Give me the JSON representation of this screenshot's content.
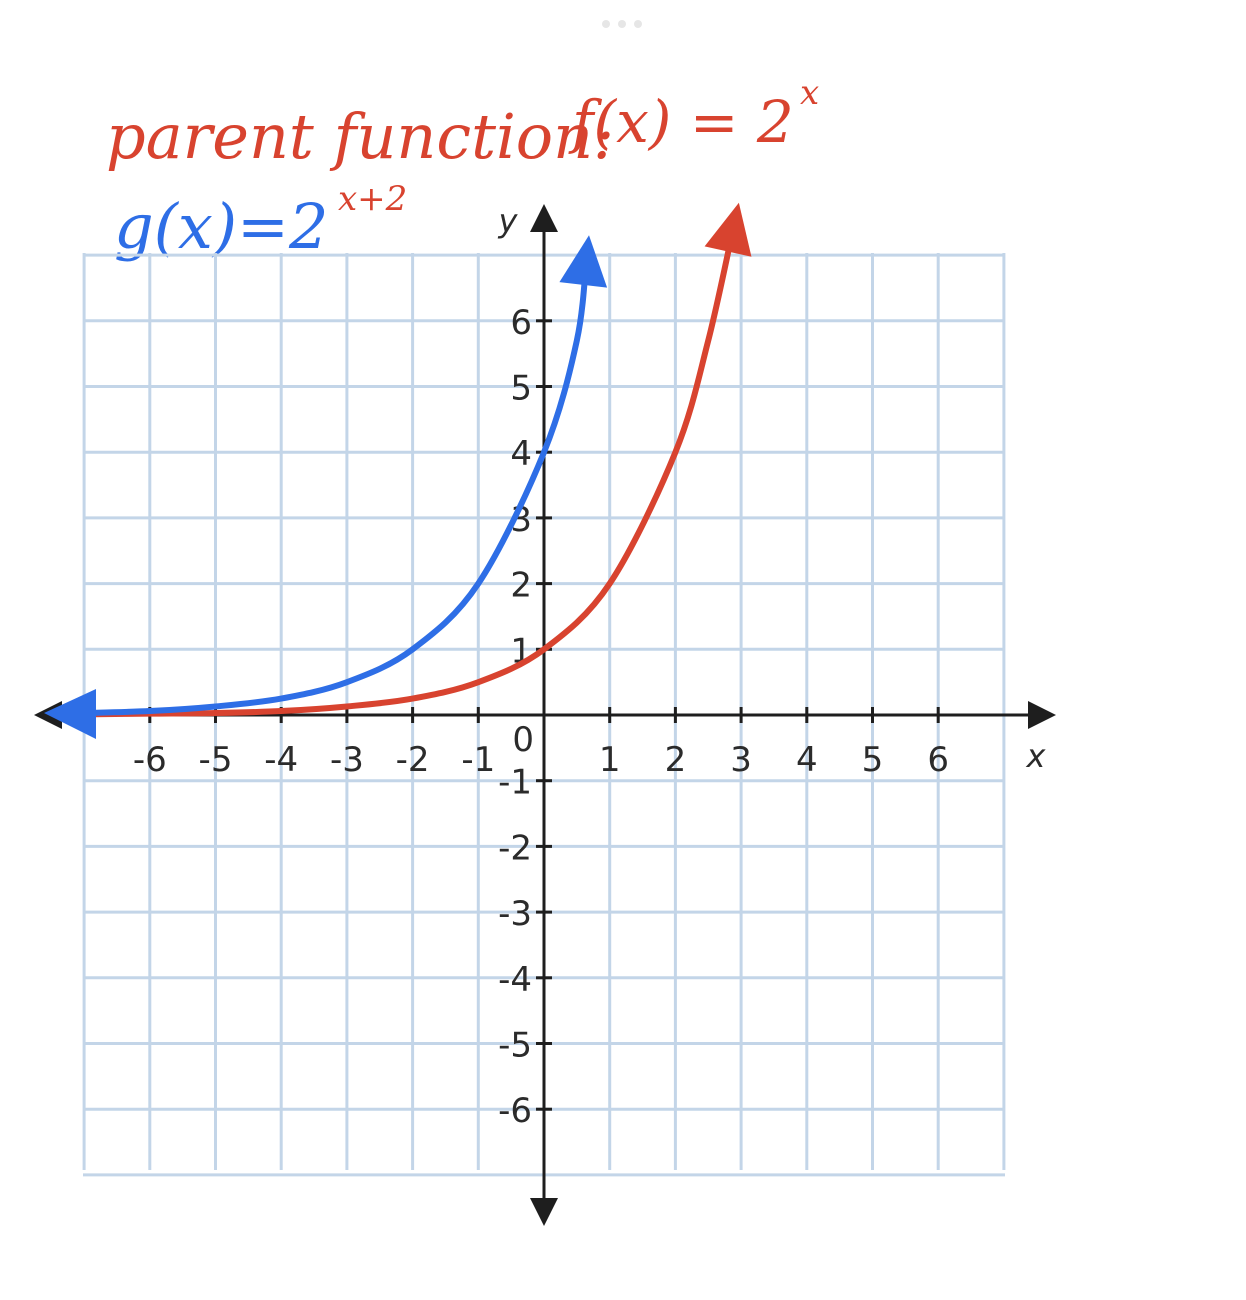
{
  "annotations": {
    "parent_text": "parent function:",
    "parent_formula_base": "f(x) = 2",
    "parent_formula_exp": "x",
    "transform_formula_base": "g(x)=2",
    "transform_formula_exp": "x+2"
  },
  "colors": {
    "grid": "#c3d5e8",
    "axis": "#1e1e1e",
    "parent": "#d8432f",
    "transform": "#2e6ee6"
  },
  "chart_data": {
    "type": "line",
    "title": "",
    "xlabel": "x",
    "ylabel": "y",
    "xlim": [
      -7,
      7
    ],
    "ylim": [
      -7,
      7
    ],
    "grid": true,
    "origin_label": "0",
    "x_ticks": [
      {
        "value": -6,
        "label": "-6"
      },
      {
        "value": -5,
        "label": "-5"
      },
      {
        "value": -4,
        "label": "-4"
      },
      {
        "value": -3,
        "label": "-3"
      },
      {
        "value": -2,
        "label": "-2"
      },
      {
        "value": -1,
        "label": "-1"
      },
      {
        "value": 1,
        "label": "1"
      },
      {
        "value": 2,
        "label": "2"
      },
      {
        "value": 3,
        "label": "3"
      },
      {
        "value": 4,
        "label": "4"
      },
      {
        "value": 5,
        "label": "5"
      },
      {
        "value": 6,
        "label": "6"
      }
    ],
    "y_ticks": [
      {
        "value": 6,
        "label": "6"
      },
      {
        "value": 5,
        "label": "5"
      },
      {
        "value": 4,
        "label": "4"
      },
      {
        "value": 3,
        "label": "3"
      },
      {
        "value": 2,
        "label": "2"
      },
      {
        "value": 1,
        "label": "1"
      },
      {
        "value": -1,
        "label": "-1"
      },
      {
        "value": -2,
        "label": "-2"
      },
      {
        "value": -3,
        "label": "-3"
      },
      {
        "value": -4,
        "label": "-4"
      },
      {
        "value": -5,
        "label": "-5"
      },
      {
        "value": -6,
        "label": "-6"
      }
    ],
    "series": [
      {
        "name": "f(x)=2^x",
        "color": "#d8432f",
        "x": [
          -7,
          -6,
          -5,
          -4,
          -3,
          -2,
          -1,
          0,
          1,
          2,
          2.5,
          2.9
        ],
        "y": [
          0.01,
          0.02,
          0.03,
          0.06,
          0.13,
          0.25,
          0.5,
          1,
          2,
          4,
          5.7,
          7.5
        ]
      },
      {
        "name": "g(x)=2^(x+2)",
        "color": "#2e6ee6",
        "x": [
          -7,
          -6,
          -5,
          -4,
          -3,
          -2,
          -1,
          0,
          0.5,
          0.65
        ],
        "y": [
          0.03,
          0.06,
          0.13,
          0.25,
          0.5,
          1,
          2,
          4,
          5.7,
          7.0
        ]
      }
    ]
  }
}
